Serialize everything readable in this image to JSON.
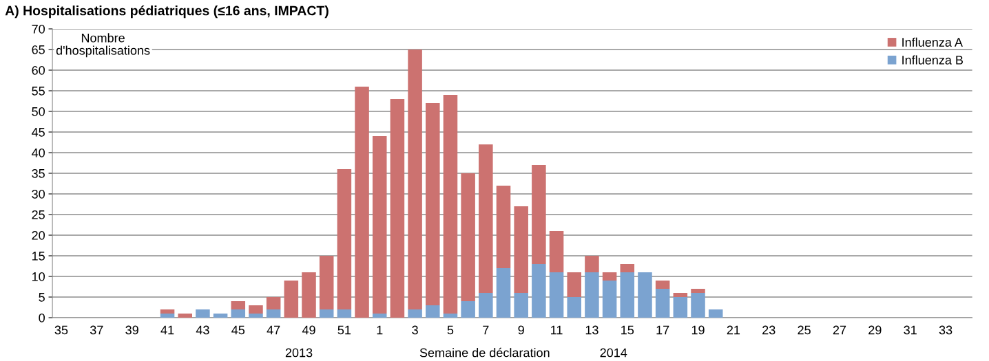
{
  "chart_data": {
    "type": "bar",
    "title": "A) Hospitalisations pédiatriques (≤16 ans, IMPACT)",
    "xlabel": "Semaine de déclaration",
    "ylabel": "Nombre\nd'hospitalisations",
    "annotations": [
      "2013",
      "2014"
    ],
    "categories": [
      "35",
      null,
      "37",
      null,
      "39",
      null,
      "41",
      null,
      "43",
      null,
      "45",
      null,
      "47",
      null,
      "49",
      null,
      "51",
      null,
      "1",
      null,
      "3",
      null,
      "5",
      null,
      "7",
      null,
      "9",
      null,
      "11",
      null,
      "13",
      null,
      "15",
      null,
      "17",
      null,
      "19",
      null,
      "21",
      null,
      "23",
      null,
      "25",
      null,
      "27",
      null,
      "29",
      null,
      "31",
      null,
      "33",
      null
    ],
    "stacked": true,
    "series": [
      {
        "name": "Influenza B",
        "color": "#7ba3d0",
        "values": [
          0,
          0,
          0,
          0,
          0,
          0,
          1,
          0,
          2,
          1,
          2,
          1,
          2,
          0,
          0,
          2,
          2,
          0,
          1,
          0,
          2,
          3,
          1,
          4,
          6,
          12,
          6,
          13,
          11,
          5,
          11,
          9,
          11,
          11,
          7,
          5,
          6,
          2,
          0,
          0,
          0,
          0,
          0,
          0,
          0,
          0,
          0,
          0,
          0,
          0,
          0,
          0
        ]
      },
      {
        "name": "Influenza A",
        "color": "#cc7270",
        "values": [
          0,
          0,
          0,
          0,
          0,
          0,
          1,
          1,
          0,
          0,
          2,
          2,
          3,
          9,
          11,
          13,
          34,
          56,
          43,
          53,
          63,
          49,
          53,
          31,
          36,
          20,
          21,
          24,
          10,
          6,
          4,
          2,
          2,
          0,
          2,
          1,
          1,
          0,
          0,
          0,
          0,
          0,
          0,
          0,
          0,
          0,
          0,
          0,
          0,
          0,
          0,
          0
        ]
      }
    ],
    "ylim": [
      0,
      70
    ],
    "yticks": [
      0,
      5,
      10,
      15,
      20,
      25,
      30,
      35,
      40,
      45,
      50,
      55,
      60,
      65,
      70
    ],
    "grid": "y",
    "legend": "top right"
  }
}
